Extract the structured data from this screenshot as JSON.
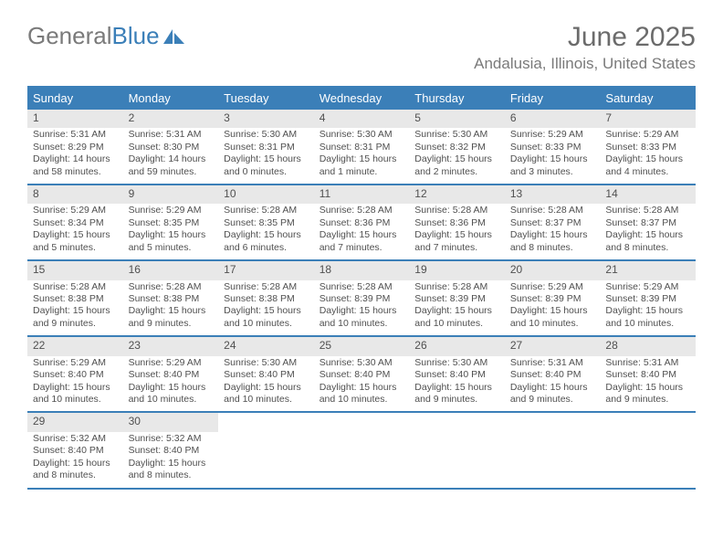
{
  "logo": {
    "text1": "General",
    "text2": "Blue"
  },
  "title": "June 2025",
  "location": "Andalusia, Illinois, United States",
  "header_bg": "#3b7fb8",
  "daynum_bg": "#e8e8e8",
  "text_color": "#505050",
  "days_of_week": [
    "Sunday",
    "Monday",
    "Tuesday",
    "Wednesday",
    "Thursday",
    "Friday",
    "Saturday"
  ],
  "weeks": [
    [
      {
        "n": "1",
        "sr": "Sunrise: 5:31 AM",
        "ss": "Sunset: 8:29 PM",
        "d1": "Daylight: 14 hours",
        "d2": "and 58 minutes."
      },
      {
        "n": "2",
        "sr": "Sunrise: 5:31 AM",
        "ss": "Sunset: 8:30 PM",
        "d1": "Daylight: 14 hours",
        "d2": "and 59 minutes."
      },
      {
        "n": "3",
        "sr": "Sunrise: 5:30 AM",
        "ss": "Sunset: 8:31 PM",
        "d1": "Daylight: 15 hours",
        "d2": "and 0 minutes."
      },
      {
        "n": "4",
        "sr": "Sunrise: 5:30 AM",
        "ss": "Sunset: 8:31 PM",
        "d1": "Daylight: 15 hours",
        "d2": "and 1 minute."
      },
      {
        "n": "5",
        "sr": "Sunrise: 5:30 AM",
        "ss": "Sunset: 8:32 PM",
        "d1": "Daylight: 15 hours",
        "d2": "and 2 minutes."
      },
      {
        "n": "6",
        "sr": "Sunrise: 5:29 AM",
        "ss": "Sunset: 8:33 PM",
        "d1": "Daylight: 15 hours",
        "d2": "and 3 minutes."
      },
      {
        "n": "7",
        "sr": "Sunrise: 5:29 AM",
        "ss": "Sunset: 8:33 PM",
        "d1": "Daylight: 15 hours",
        "d2": "and 4 minutes."
      }
    ],
    [
      {
        "n": "8",
        "sr": "Sunrise: 5:29 AM",
        "ss": "Sunset: 8:34 PM",
        "d1": "Daylight: 15 hours",
        "d2": "and 5 minutes."
      },
      {
        "n": "9",
        "sr": "Sunrise: 5:29 AM",
        "ss": "Sunset: 8:35 PM",
        "d1": "Daylight: 15 hours",
        "d2": "and 5 minutes."
      },
      {
        "n": "10",
        "sr": "Sunrise: 5:28 AM",
        "ss": "Sunset: 8:35 PM",
        "d1": "Daylight: 15 hours",
        "d2": "and 6 minutes."
      },
      {
        "n": "11",
        "sr": "Sunrise: 5:28 AM",
        "ss": "Sunset: 8:36 PM",
        "d1": "Daylight: 15 hours",
        "d2": "and 7 minutes."
      },
      {
        "n": "12",
        "sr": "Sunrise: 5:28 AM",
        "ss": "Sunset: 8:36 PM",
        "d1": "Daylight: 15 hours",
        "d2": "and 7 minutes."
      },
      {
        "n": "13",
        "sr": "Sunrise: 5:28 AM",
        "ss": "Sunset: 8:37 PM",
        "d1": "Daylight: 15 hours",
        "d2": "and 8 minutes."
      },
      {
        "n": "14",
        "sr": "Sunrise: 5:28 AM",
        "ss": "Sunset: 8:37 PM",
        "d1": "Daylight: 15 hours",
        "d2": "and 8 minutes."
      }
    ],
    [
      {
        "n": "15",
        "sr": "Sunrise: 5:28 AM",
        "ss": "Sunset: 8:38 PM",
        "d1": "Daylight: 15 hours",
        "d2": "and 9 minutes."
      },
      {
        "n": "16",
        "sr": "Sunrise: 5:28 AM",
        "ss": "Sunset: 8:38 PM",
        "d1": "Daylight: 15 hours",
        "d2": "and 9 minutes."
      },
      {
        "n": "17",
        "sr": "Sunrise: 5:28 AM",
        "ss": "Sunset: 8:38 PM",
        "d1": "Daylight: 15 hours",
        "d2": "and 10 minutes."
      },
      {
        "n": "18",
        "sr": "Sunrise: 5:28 AM",
        "ss": "Sunset: 8:39 PM",
        "d1": "Daylight: 15 hours",
        "d2": "and 10 minutes."
      },
      {
        "n": "19",
        "sr": "Sunrise: 5:28 AM",
        "ss": "Sunset: 8:39 PM",
        "d1": "Daylight: 15 hours",
        "d2": "and 10 minutes."
      },
      {
        "n": "20",
        "sr": "Sunrise: 5:29 AM",
        "ss": "Sunset: 8:39 PM",
        "d1": "Daylight: 15 hours",
        "d2": "and 10 minutes."
      },
      {
        "n": "21",
        "sr": "Sunrise: 5:29 AM",
        "ss": "Sunset: 8:39 PM",
        "d1": "Daylight: 15 hours",
        "d2": "and 10 minutes."
      }
    ],
    [
      {
        "n": "22",
        "sr": "Sunrise: 5:29 AM",
        "ss": "Sunset: 8:40 PM",
        "d1": "Daylight: 15 hours",
        "d2": "and 10 minutes."
      },
      {
        "n": "23",
        "sr": "Sunrise: 5:29 AM",
        "ss": "Sunset: 8:40 PM",
        "d1": "Daylight: 15 hours",
        "d2": "and 10 minutes."
      },
      {
        "n": "24",
        "sr": "Sunrise: 5:30 AM",
        "ss": "Sunset: 8:40 PM",
        "d1": "Daylight: 15 hours",
        "d2": "and 10 minutes."
      },
      {
        "n": "25",
        "sr": "Sunrise: 5:30 AM",
        "ss": "Sunset: 8:40 PM",
        "d1": "Daylight: 15 hours",
        "d2": "and 10 minutes."
      },
      {
        "n": "26",
        "sr": "Sunrise: 5:30 AM",
        "ss": "Sunset: 8:40 PM",
        "d1": "Daylight: 15 hours",
        "d2": "and 9 minutes."
      },
      {
        "n": "27",
        "sr": "Sunrise: 5:31 AM",
        "ss": "Sunset: 8:40 PM",
        "d1": "Daylight: 15 hours",
        "d2": "and 9 minutes."
      },
      {
        "n": "28",
        "sr": "Sunrise: 5:31 AM",
        "ss": "Sunset: 8:40 PM",
        "d1": "Daylight: 15 hours",
        "d2": "and 9 minutes."
      }
    ],
    [
      {
        "n": "29",
        "sr": "Sunrise: 5:32 AM",
        "ss": "Sunset: 8:40 PM",
        "d1": "Daylight: 15 hours",
        "d2": "and 8 minutes."
      },
      {
        "n": "30",
        "sr": "Sunrise: 5:32 AM",
        "ss": "Sunset: 8:40 PM",
        "d1": "Daylight: 15 hours",
        "d2": "and 8 minutes."
      },
      null,
      null,
      null,
      null,
      null
    ]
  ]
}
